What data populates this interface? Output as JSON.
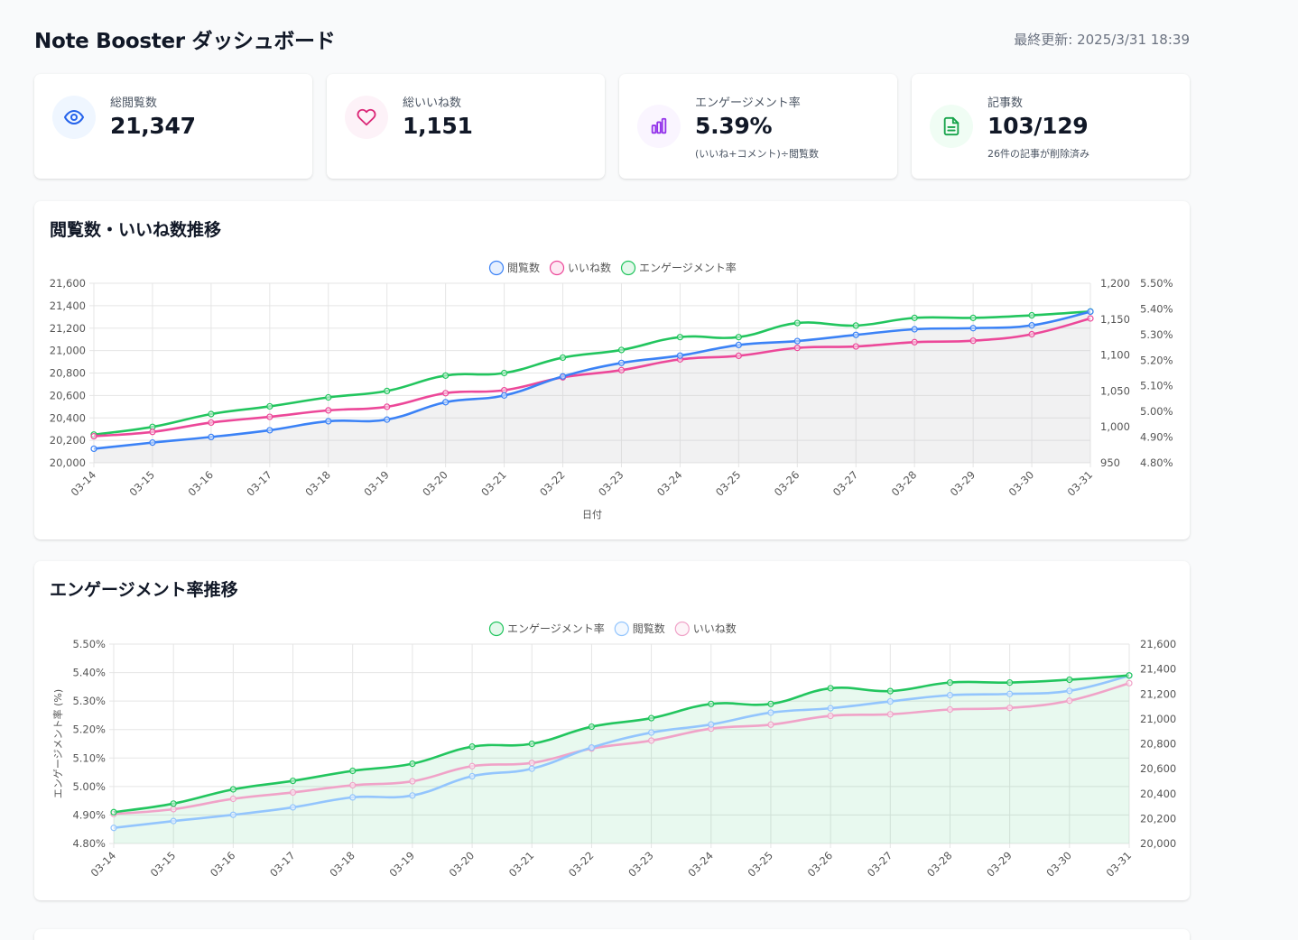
{
  "header": {
    "title": "Note Booster ダッシュボード",
    "last_updated": "最終更新: 2025/3/31 18:39"
  },
  "stats": [
    {
      "icon": "eye-icon",
      "label": "総閲覧数",
      "value": "21,347",
      "sub": "",
      "color": "#2563eb",
      "bg": "#eff6ff"
    },
    {
      "icon": "heart-icon",
      "label": "総いいね数",
      "value": "1,151",
      "sub": "",
      "color": "#db2777",
      "bg": "#fdf2f8"
    },
    {
      "icon": "bar-chart-icon",
      "label": "エンゲージメント率",
      "value": "5.39%",
      "sub": "(いいね+コメント)÷閲覧数",
      "color": "#9333ea",
      "bg": "#faf5ff"
    },
    {
      "icon": "document-icon",
      "label": "記事数",
      "value": "103/129",
      "sub": "26件の記事が削除済み",
      "color": "#16a34a",
      "bg": "#f0fdf4"
    }
  ],
  "colors": {
    "views": "#3b82f6",
    "likes": "#ec4899",
    "engagement": "#22c55e"
  },
  "chart_data": [
    {
      "type": "line",
      "title": "閲覧数・いいね数推移",
      "xlabel": "日付",
      "x": [
        "03-14",
        "03-15",
        "03-16",
        "03-17",
        "03-18",
        "03-19",
        "03-20",
        "03-21",
        "03-22",
        "03-23",
        "03-24",
        "03-25",
        "03-26",
        "03-27",
        "03-28",
        "03-29",
        "03-30",
        "03-31"
      ],
      "legend": "top-center",
      "grid": true,
      "axes": {
        "y_left": {
          "min": 20000,
          "max": 21600,
          "ticks": [
            "20,000",
            "20,200",
            "20,400",
            "20,600",
            "20,800",
            "21,000",
            "21,200",
            "21,400",
            "21,600"
          ]
        },
        "y_right1": {
          "min": 950,
          "max": 1200,
          "ticks": [
            "950",
            "1,000",
            "1,050",
            "1,100",
            "1,150",
            "1,200"
          ]
        },
        "y_right2": {
          "min": 4.8,
          "max": 5.5,
          "ticks": [
            "4.80%",
            "4.90%",
            "5.00%",
            "5.10%",
            "5.20%",
            "5.30%",
            "5.40%",
            "5.50%"
          ]
        }
      },
      "series": [
        {
          "name": "閲覧数",
          "axis": "y_left",
          "color": "#3b82f6",
          "fill": true,
          "values": [
            20125,
            20180,
            20230,
            20290,
            20370,
            20385,
            20540,
            20600,
            20770,
            20890,
            20955,
            21050,
            21085,
            21140,
            21190,
            21200,
            21225,
            21347
          ]
        },
        {
          "name": "いいね数",
          "axis": "y_right1",
          "color": "#ec4899",
          "fill": false,
          "values": [
            987,
            993,
            1006,
            1014,
            1023,
            1028,
            1047,
            1051,
            1069,
            1079,
            1094,
            1099,
            1110,
            1112,
            1118,
            1120,
            1129,
            1151
          ]
        },
        {
          "name": "エンゲージメント率",
          "axis": "y_right2",
          "color": "#22c55e",
          "fill": false,
          "values": [
            4.91,
            4.94,
            4.99,
            5.02,
            5.055,
            5.08,
            5.14,
            5.15,
            5.21,
            5.24,
            5.29,
            5.29,
            5.345,
            5.335,
            5.365,
            5.365,
            5.375,
            5.39
          ]
        }
      ]
    },
    {
      "type": "line",
      "title": "エンゲージメント率推移",
      "ylabel": "エンゲージメント率 (%)",
      "x": [
        "03-14",
        "03-15",
        "03-16",
        "03-17",
        "03-18",
        "03-19",
        "03-20",
        "03-21",
        "03-22",
        "03-23",
        "03-24",
        "03-25",
        "03-26",
        "03-27",
        "03-28",
        "03-29",
        "03-30",
        "03-31"
      ],
      "legend": "top-center",
      "grid": true,
      "axes": {
        "y_left": {
          "min": 4.8,
          "max": 5.5,
          "ticks": [
            "4.80%",
            "4.90%",
            "5.00%",
            "5.10%",
            "5.20%",
            "5.30%",
            "5.40%",
            "5.50%"
          ]
        },
        "y_right": {
          "min": 20000,
          "max": 21600,
          "ticks": [
            "20,000",
            "20,200",
            "20,400",
            "20,600",
            "20,800",
            "21,000",
            "21,200",
            "21,400",
            "21,600"
          ]
        },
        "y_likes": {
          "min": 950,
          "max": 1200
        }
      },
      "series": [
        {
          "name": "エンゲージメント率",
          "axis": "y_left",
          "color": "#22c55e",
          "fill": true,
          "values": [
            4.91,
            4.94,
            4.99,
            5.02,
            5.055,
            5.08,
            5.14,
            5.15,
            5.21,
            5.24,
            5.29,
            5.29,
            5.345,
            5.335,
            5.365,
            5.365,
            5.375,
            5.39
          ]
        },
        {
          "name": "閲覧数",
          "axis": "y_right",
          "color": "#93c5fd",
          "fill": false,
          "values": [
            20125,
            20180,
            20230,
            20290,
            20370,
            20385,
            20540,
            20600,
            20770,
            20890,
            20955,
            21050,
            21085,
            21140,
            21190,
            21200,
            21225,
            21347
          ]
        },
        {
          "name": "いいね数",
          "axis": "y_likes",
          "color": "#f0a3c8",
          "fill": false,
          "values": [
            987,
            993,
            1006,
            1014,
            1023,
            1028,
            1047,
            1051,
            1069,
            1079,
            1094,
            1099,
            1110,
            1112,
            1118,
            1120,
            1129,
            1151
          ]
        }
      ]
    }
  ]
}
